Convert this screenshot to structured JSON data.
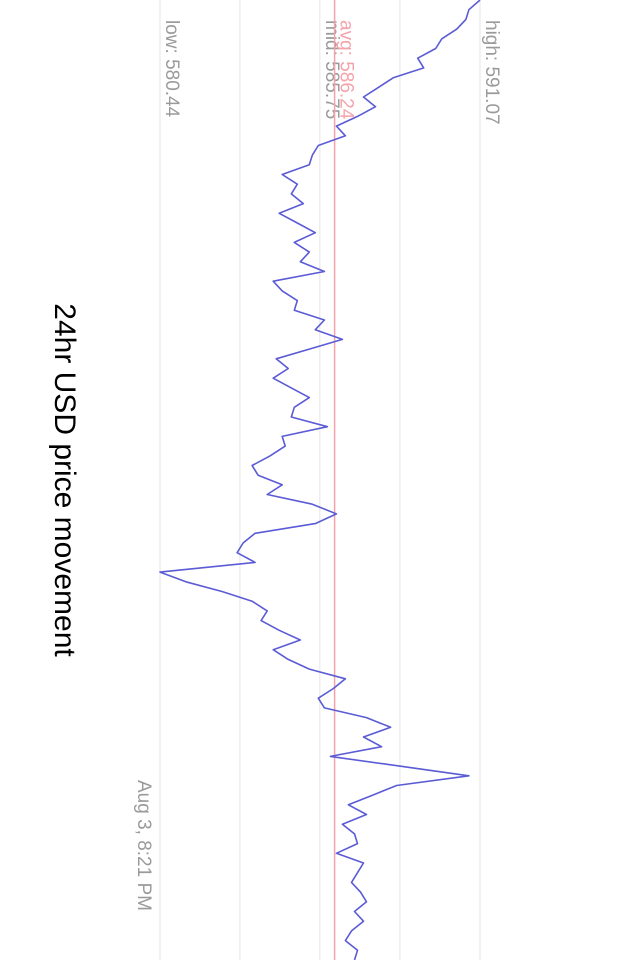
{
  "chart_data": {
    "type": "line",
    "title": "24hr USD price movement",
    "ylim": [
      580.44,
      591.07
    ],
    "reference_lines": [
      {
        "label": "low: 580.44",
        "value": 580.44
      },
      {
        "label": "mid: 585.75",
        "value": 585.75
      },
      {
        "label": "avg: 586.24",
        "value": 586.24
      },
      {
        "label": "high: 591.07",
        "value": 591.07
      }
    ],
    "x_tick_labels": [
      "Aug 3, 8:21 PM"
    ],
    "grid": true,
    "colors": {
      "line": "#5b5bd6",
      "avg": "#f5a3aa",
      "grid": "#e6e6e6",
      "label": "#9a9a9a",
      "title": "#000000"
    },
    "series": [
      {
        "values": [
          591.07,
          590.7,
          590.6,
          590.3,
          589.8,
          589.6,
          589.0,
          589.2,
          588.2,
          587.7,
          587.2,
          587.6,
          587.0,
          586.3,
          586.6,
          585.7,
          585.5,
          585.4,
          584.5,
          585.0,
          584.8,
          585.2,
          584.4,
          585.0,
          585.6,
          584.9,
          585.4,
          585.1,
          585.9,
          584.2,
          584.5,
          585.0,
          584.9,
          585.9,
          585.6,
          586.5,
          585.4,
          584.3,
          584.7,
          584.2,
          584.8,
          585.4,
          584.9,
          584.8,
          586.0,
          584.5,
          584.6,
          584.1,
          583.5,
          583.7,
          584.5,
          584.0,
          585.5,
          586.3,
          585.6,
          583.6,
          583.2,
          583.0,
          583.6,
          580.44,
          581.3,
          582.5,
          583.5,
          584.0,
          583.8,
          584.4,
          585.1,
          584.2,
          584.7,
          585.4,
          586.6,
          586.2,
          585.7,
          585.9,
          587.3,
          588.1,
          587.2,
          587.8,
          586.1,
          588.4,
          590.7,
          588.3,
          587.5,
          586.7,
          587.3,
          586.5,
          586.9,
          587.0,
          586.3,
          587.2,
          587.0,
          586.8,
          587.1,
          587.3,
          586.9,
          587.2,
          586.8,
          586.6,
          587.0,
          586.9
        ]
      }
    ]
  }
}
